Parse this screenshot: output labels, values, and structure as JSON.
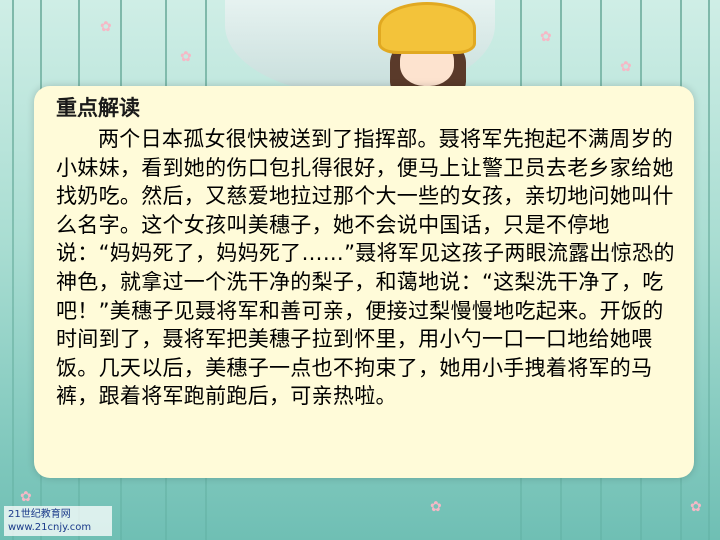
{
  "panel": {
    "title": "重点解读",
    "body": "两个日本孤女很快被送到了指挥部。聂将军先抱起不满周岁的小妹妹，看到她的伤口包扎得很好，便马上让警卫员去老乡家给她找奶吃。然后，又慈爱地拉过那个大一些的女孩，亲切地问她叫什么名字。这个女孩叫美穗子，她不会说中国话，只是不停地说：“妈妈死了，妈妈死了……”聂将军见这孩子两眼流露出惊恐的神色，就拿过一个洗干净的梨子，和蔼地说：“这梨洗干净了，吃吧！”美穗子见聂将军和善可亲，便接过梨慢慢地吃起来。开饭的时间到了，聂将军把美穗子拉到怀里，用小勺一口一口地给她喂饭。几天以后，美穗子一点也不拘束了，她用小手拽着将军的马裤，跟着将军跑前跑后，可亲热啦。"
  },
  "watermark": {
    "line1": "21世纪教育网",
    "line2": "www.21cnjy.com"
  },
  "colors": {
    "panel_bg": "#fffbd9",
    "background_teal": "#6fbfb4",
    "hat_yellow": "#f3c33a"
  }
}
